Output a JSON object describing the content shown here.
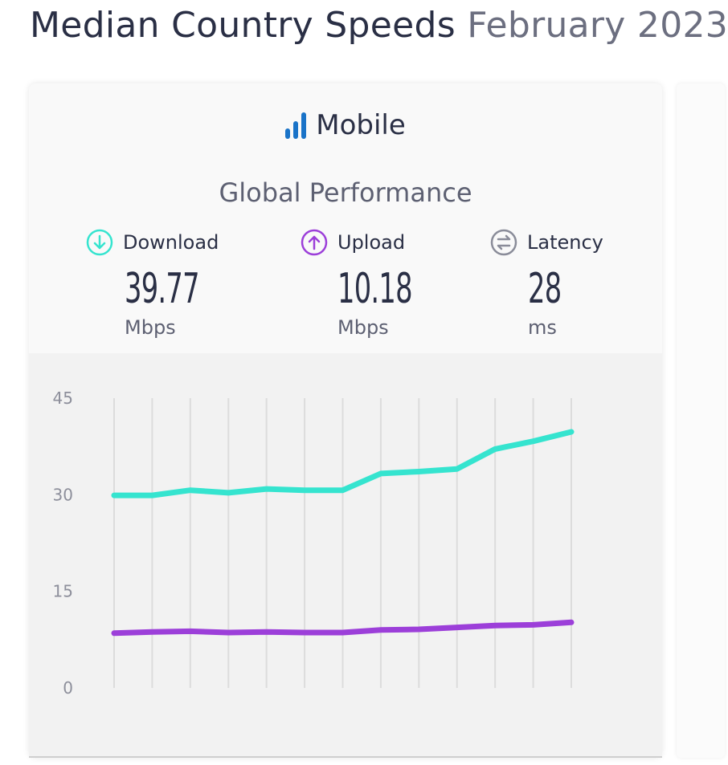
{
  "page": {
    "title_main": "Median Country Speeds",
    "title_period": "February 2023"
  },
  "card": {
    "title": "Mobile",
    "icon": "signal-bars-icon",
    "section_title": "Global Performance"
  },
  "metrics": [
    {
      "label": "Download",
      "value": "39.77",
      "unit": "Mbps",
      "icon": "arrow-down-circle-icon",
      "color": "#35e4cf"
    },
    {
      "label": "Upload",
      "value": "10.18",
      "unit": "Mbps",
      "icon": "arrow-up-circle-icon",
      "color": "#9c3fd9"
    },
    {
      "label": "Latency",
      "value": "28",
      "unit": "ms",
      "icon": "latency-circle-icon",
      "color": "#8a8c99"
    }
  ],
  "chart_data": {
    "type": "line",
    "x": [
      1,
      2,
      3,
      4,
      5,
      6,
      7,
      8,
      9,
      10,
      11,
      12,
      13
    ],
    "ylim": [
      0,
      45
    ],
    "yticks": [
      0,
      15,
      30,
      45
    ],
    "grid": "vertical",
    "legend": "none",
    "series": [
      {
        "values": [
          29.9,
          29.9,
          30.7,
          30.3,
          30.9,
          30.7,
          30.7,
          33.3,
          33.6,
          34.0,
          37.1,
          38.3,
          39.77
        ],
        "color": "#35e4cf"
      },
      {
        "values": [
          8.5,
          8.7,
          8.8,
          8.6,
          8.7,
          8.6,
          8.6,
          9.0,
          9.1,
          9.4,
          9.7,
          9.8,
          10.18
        ],
        "color": "#9c3fd9"
      }
    ]
  }
}
